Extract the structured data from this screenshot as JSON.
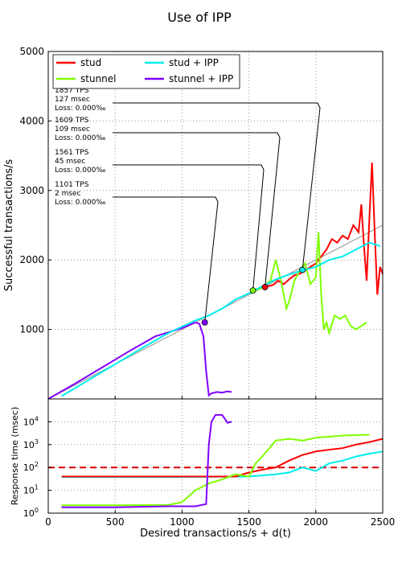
{
  "chart_data": [
    {
      "type": "line",
      "title": "Use of IPP",
      "xlabel": "",
      "ylabel": "Successful transactions/s",
      "xlim": [
        0,
        2500
      ],
      "ylim": [
        0,
        5000
      ],
      "xticks": [
        "0",
        "500",
        "1000",
        "1500",
        "2000",
        "2500"
      ],
      "yticks": [
        "1000",
        "2000",
        "3000",
        "4000",
        "5000"
      ],
      "grid": true,
      "legend": "top-left",
      "legend_entries": [
        "stud",
        "stunnel",
        "stud + IPP",
        "stunnel + IPP"
      ],
      "colors": {
        "stud": "#ff0000",
        "stunnel": "#7fff00",
        "stud_ipp": "#00eeee",
        "stunnel_ipp": "#7f00ff",
        "ideal": "#a0a0a0"
      },
      "series": [
        {
          "name": "stud",
          "x": [
            1620,
            1680,
            1720,
            1760,
            1800,
            1840,
            1880,
            1920,
            1960,
            2000,
            2040,
            2080,
            2120,
            2160,
            2200,
            2240,
            2280,
            2320,
            2340,
            2360,
            2380,
            2400,
            2420,
            2440,
            2460,
            2480,
            2500
          ],
          "y": [
            1610,
            1640,
            1700,
            1650,
            1720,
            1780,
            1800,
            1850,
            1900,
            1950,
            2050,
            2150,
            2300,
            2250,
            2350,
            2300,
            2500,
            2400,
            2800,
            2200,
            1700,
            2600,
            3400,
            2400,
            1500,
            1900,
            1800
          ]
        },
        {
          "name": "stunnel",
          "x": [
            1530,
            1580,
            1620,
            1660,
            1700,
            1740,
            1760,
            1780,
            1800,
            1840,
            1880,
            1920,
            1960,
            2000,
            2020,
            2040,
            2060,
            2080,
            2100,
            2140,
            2180,
            2220,
            2260,
            2300,
            2340,
            2380
          ],
          "y": [
            1560,
            1580,
            1640,
            1700,
            2000,
            1700,
            1500,
            1300,
            1400,
            1700,
            1850,
            1950,
            1650,
            1750,
            2400,
            1500,
            1000,
            1100,
            950,
            1200,
            1150,
            1200,
            1050,
            1000,
            1050,
            1100
          ]
        },
        {
          "name": "stud + IPP",
          "x": [
            100,
            300,
            500,
            700,
            900,
            1100,
            1200,
            1300,
            1400,
            1500,
            1600,
            1700,
            1800,
            1900,
            2000,
            2100,
            2200,
            2300,
            2400,
            2480
          ],
          "y": [
            40,
            270,
            500,
            730,
            950,
            1130,
            1200,
            1300,
            1430,
            1520,
            1620,
            1720,
            1790,
            1850,
            1900,
            2000,
            2050,
            2150,
            2250,
            2200
          ]
        },
        {
          "name": "stunnel + IPP",
          "x": [
            0,
            200,
            400,
            600,
            800,
            1000,
            1100,
            1130,
            1160,
            1180,
            1200,
            1220,
            1260,
            1300,
            1340,
            1370
          ],
          "y": [
            0,
            220,
            450,
            680,
            900,
            1020,
            1101,
            1080,
            900,
            400,
            50,
            80,
            100,
            90,
            110,
            100
          ]
        }
      ],
      "annotations": [
        {
          "lines": [
            "1857 TPS",
            "127 msec",
            "Loss: 0.000‰"
          ],
          "x": 1900,
          "y": 1857
        },
        {
          "lines": [
            "1609 TPS",
            "109 msec",
            "Loss: 0.000‰"
          ],
          "x": 1620,
          "y": 1609
        },
        {
          "lines": [
            "1561 TPS",
            "45 msec",
            "Loss: 0.000‰"
          ],
          "x": 1530,
          "y": 1561
        },
        {
          "lines": [
            "1101 TPS",
            "2 msec",
            "Loss: 0.000‰"
          ],
          "x": 1170,
          "y": 1101
        }
      ]
    },
    {
      "type": "line",
      "title": "",
      "xlabel": "Desired transactions/s + d(t)",
      "ylabel": "Response time (msec)",
      "xlim": [
        0,
        2500
      ],
      "ylim": [
        1,
        100000
      ],
      "yscale": "log",
      "xticks": [
        "0",
        "500",
        "1000",
        "1500",
        "2000",
        "2500"
      ],
      "ytick_labels": [
        "10^0",
        "10^1",
        "10^2",
        "10^3",
        "10^4"
      ],
      "threshold": 100,
      "grid": true,
      "series": [
        {
          "name": "stud",
          "x": [
            100,
            500,
            1000,
            1400,
            1500,
            1600,
            1700,
            1800,
            1900,
            2000,
            2100,
            2200,
            2300,
            2400,
            2500
          ],
          "y": [
            40,
            40,
            40,
            40,
            60,
            80,
            100,
            200,
            350,
            500,
            600,
            700,
            1000,
            1300,
            1800
          ]
        },
        {
          "name": "stunnel",
          "x": [
            100,
            500,
            900,
            1000,
            1100,
            1200,
            1300,
            1400,
            1500,
            1550,
            1600,
            1700,
            1800,
            1900,
            2000,
            2200,
            2400
          ],
          "y": [
            2.2,
            2.2,
            2.3,
            3,
            10,
            20,
            30,
            50,
            40,
            150,
            300,
            1500,
            1800,
            1500,
            2000,
            2500,
            2700
          ]
        },
        {
          "name": "stud + IPP",
          "x": [
            100,
            500,
            1000,
            1500,
            1700,
            1800,
            1900,
            2000,
            2100,
            2200,
            2300,
            2400,
            2500
          ],
          "y": [
            38,
            38,
            38,
            40,
            50,
            60,
            100,
            70,
            150,
            200,
            300,
            400,
            500
          ]
        },
        {
          "name": "stunnel + IPP",
          "x": [
            100,
            500,
            900,
            1100,
            1180,
            1200,
            1220,
            1250,
            1300,
            1340,
            1370
          ],
          "y": [
            1.8,
            1.8,
            2,
            2,
            2.5,
            1000,
            10000,
            20000,
            20000,
            9000,
            10000
          ]
        }
      ]
    }
  ]
}
